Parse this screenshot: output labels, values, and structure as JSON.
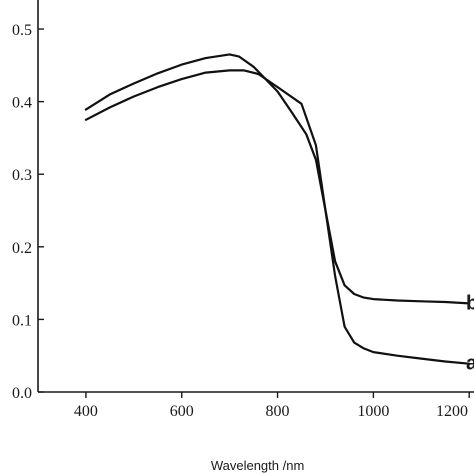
{
  "chart_data": {
    "type": "line",
    "title": "",
    "xlabel": "Wavelength /nm",
    "ylabel": "",
    "xlim": [
      300,
      1210
    ],
    "ylim": [
      0.0,
      0.54
    ],
    "xticks": [
      400,
      600,
      800,
      1000,
      1200
    ],
    "xtick_labels": [
      "400",
      "600",
      "800",
      "1000",
      "1200"
    ],
    "yticks": [
      0.0,
      0.1,
      0.2,
      0.3,
      0.4,
      0.5
    ],
    "ytick_labels": [
      "0.0",
      "0.1",
      "0.2",
      "0.3",
      "0.4",
      "0.5"
    ],
    "grid": false,
    "legend": "none",
    "series": [
      {
        "name": "b",
        "label": "b",
        "x": [
          400,
          450,
          500,
          550,
          600,
          650,
          700,
          730,
          760,
          800,
          850,
          880,
          900,
          920,
          940,
          960,
          980,
          1000,
          1050,
          1100,
          1150,
          1200
        ],
        "y": [
          0.375,
          0.392,
          0.407,
          0.42,
          0.431,
          0.44,
          0.443,
          0.443,
          0.438,
          0.42,
          0.397,
          0.34,
          0.25,
          0.18,
          0.147,
          0.135,
          0.13,
          0.128,
          0.126,
          0.125,
          0.124,
          0.122
        ]
      },
      {
        "name": "a",
        "label": "a",
        "x": [
          400,
          450,
          500,
          550,
          600,
          650,
          700,
          720,
          750,
          800,
          830,
          860,
          880,
          900,
          920,
          940,
          960,
          980,
          1000,
          1050,
          1100,
          1150,
          1200
        ],
        "y": [
          0.389,
          0.41,
          0.425,
          0.439,
          0.451,
          0.46,
          0.465,
          0.462,
          0.448,
          0.414,
          0.385,
          0.355,
          0.32,
          0.25,
          0.16,
          0.09,
          0.068,
          0.06,
          0.055,
          0.05,
          0.046,
          0.042,
          0.039
        ]
      }
    ]
  }
}
